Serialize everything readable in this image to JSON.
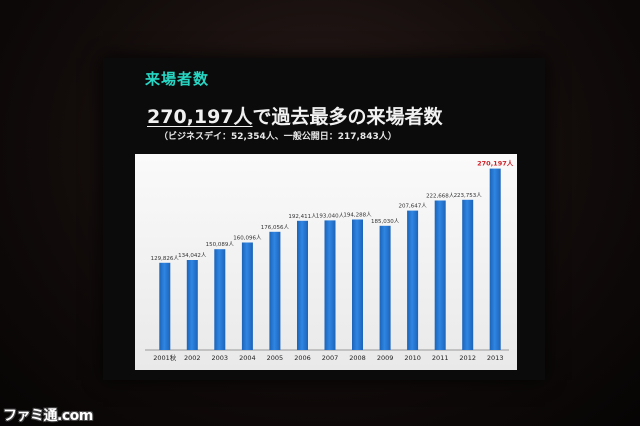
{
  "slide": {
    "title": "来場者数",
    "headline_number": "270,197人",
    "headline_rest": "で過去最多の来場者数",
    "subline": "（ビジネスデイ：52,354人、一般公開日：217,843人）"
  },
  "watermark": "ファミ通.com",
  "colors": {
    "bar": "#2f86e3",
    "bar_dark": "#1c63b8",
    "highlight_label": "#d0232a",
    "label": "#333333"
  },
  "chart_data": {
    "type": "bar",
    "title": "",
    "xlabel": "",
    "ylabel": "",
    "categories": [
      "2001秋",
      "2002",
      "2003",
      "2004",
      "2005",
      "2006",
      "2007",
      "2008",
      "2009",
      "2010",
      "2011",
      "2012",
      "2013"
    ],
    "values": [
      129826,
      134042,
      150089,
      160096,
      176056,
      192411,
      193040,
      194288,
      185030,
      207647,
      222668,
      223753,
      270197
    ],
    "data_labels": [
      "129,826人",
      "134,042人",
      "150,089人",
      "160,096人",
      "176,056人",
      "192,411人",
      "193,040人",
      "194,288人",
      "185,030人",
      "207,647人",
      "222,668人",
      "223,753人",
      "270,197人"
    ],
    "highlight_index": 12,
    "ylim": [
      0,
      280000
    ],
    "grid": false,
    "legend": "none"
  }
}
